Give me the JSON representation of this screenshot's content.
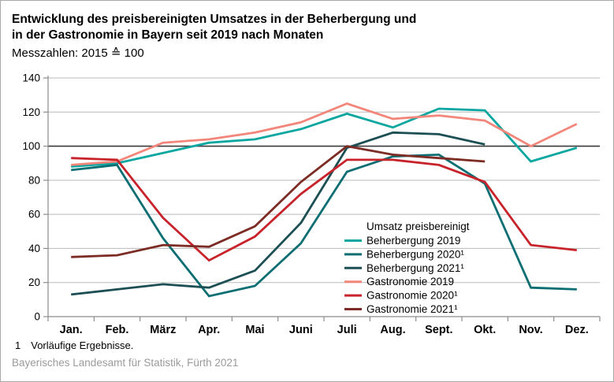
{
  "header": {
    "title_line1": "Entwicklung des preisbereinigten Umsatzes in der Beherbergung und",
    "title_line2": "in der Gastronomie in Bayern seit 2019 nach Monaten",
    "subtitle": "Messzahlen: 2015 ≙ 100"
  },
  "footnote": {
    "marker": "1",
    "text": "Vorläufige Ergebnisse."
  },
  "source": "Bayerisches Landesamt für Statistik, Fürth 2021",
  "colors": {
    "gridline": "#b9b9b9",
    "reference_line": "#3a3a3a",
    "axis": "#8c8c8c",
    "label_text": "#000000",
    "source_text": "#9b9b9b"
  },
  "chart_data": {
    "type": "line",
    "title": "Entwicklung des preisbereinigten Umsatzes in der Beherbergung und in der Gastronomie in Bayern seit 2019 nach Monaten",
    "subtitle": "Messzahlen: 2015 ≙ 100",
    "xlabel": "",
    "ylabel": "",
    "ylim": [
      0,
      140
    ],
    "y_ticks": [
      0,
      20,
      40,
      60,
      80,
      100,
      120,
      140
    ],
    "reference_line": 100,
    "grid": true,
    "legend_title": "Umsatz preisbereinigt",
    "legend_position": "inside-right",
    "categories": [
      "Jan.",
      "Feb.",
      "März",
      "Apr.",
      "Mai",
      "Juni",
      "Juli",
      "Aug.",
      "Sept.",
      "Okt.",
      "Nov.",
      "Dez."
    ],
    "series": [
      {
        "name": "Beherbergung 2019",
        "color": "#0aa6a0",
        "values": [
          88,
          90,
          96,
          102,
          104,
          110,
          119,
          111,
          122,
          121,
          91,
          99
        ]
      },
      {
        "name": "Beherbergung 2020¹",
        "color": "#0b6e72",
        "values": [
          86,
          89,
          46,
          12,
          18,
          43,
          85,
          94,
          95,
          78,
          17,
          16
        ]
      },
      {
        "name": "Beherbergung 2021¹",
        "color": "#1c4f54",
        "values": [
          13,
          16,
          19,
          17,
          27,
          55,
          99,
          108,
          107,
          101,
          null,
          null
        ]
      },
      {
        "name": "Gastronomie 2019",
        "color": "#f2867b",
        "values": [
          89,
          91,
          102,
          104,
          108,
          114,
          125,
          116,
          118,
          115,
          100,
          113
        ]
      },
      {
        "name": "Gastronomie 2020¹",
        "color": "#c8232b",
        "values": [
          93,
          92,
          58,
          33,
          47,
          72,
          92,
          92,
          89,
          79,
          42,
          39
        ]
      },
      {
        "name": "Gastronomie 2021¹",
        "color": "#7c2c24",
        "values": [
          35,
          36,
          42,
          41,
          53,
          79,
          100,
          95,
          93,
          91,
          null,
          null
        ]
      }
    ]
  }
}
